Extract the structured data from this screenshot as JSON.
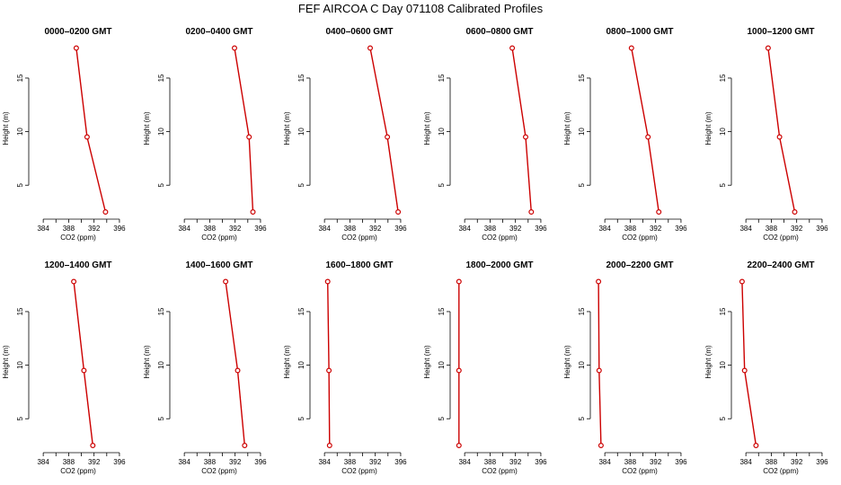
{
  "title": "FEF AIRCOA C  Day 071108  Calibrated Profiles",
  "colors": {
    "series": "#cc0000",
    "axes": "#000000",
    "background": "#ffffff"
  },
  "chart_data": [
    {
      "type": "line",
      "title": "0000–0200 GMT",
      "xlabel": "CO2 (ppm)",
      "ylabel": "Height (m)",
      "xlim": [
        382,
        397
      ],
      "ylim": [
        2,
        18.6
      ],
      "xticks": [
        384,
        388,
        392,
        396
      ],
      "yticks": [
        5,
        10,
        15
      ],
      "points": [
        {
          "x": 389.2,
          "y": 17.8
        },
        {
          "x": 390.9,
          "y": 9.5
        },
        {
          "x": 393.8,
          "y": 2.5
        }
      ]
    },
    {
      "type": "line",
      "title": "0200–0400 GMT",
      "xlabel": "CO2 (ppm)",
      "ylabel": "Height (m)",
      "xlim": [
        382,
        397
      ],
      "ylim": [
        2,
        18.6
      ],
      "xticks": [
        384,
        388,
        392,
        396
      ],
      "yticks": [
        5,
        10,
        15
      ],
      "points": [
        {
          "x": 391.9,
          "y": 17.8
        },
        {
          "x": 394.2,
          "y": 9.5
        },
        {
          "x": 394.8,
          "y": 2.5
        }
      ]
    },
    {
      "type": "line",
      "title": "0400–0600 GMT",
      "xlabel": "CO2 (ppm)",
      "ylabel": "Height (m)",
      "xlim": [
        382,
        397
      ],
      "ylim": [
        2,
        18.6
      ],
      "xticks": [
        384,
        388,
        392,
        396
      ],
      "yticks": [
        5,
        10,
        15
      ],
      "points": [
        {
          "x": 391.2,
          "y": 17.8
        },
        {
          "x": 393.9,
          "y": 9.5
        },
        {
          "x": 395.6,
          "y": 2.5
        }
      ]
    },
    {
      "type": "line",
      "title": "0600–0800 GMT",
      "xlabel": "CO2 (ppm)",
      "ylabel": "Height (m)",
      "xlim": [
        382,
        397
      ],
      "ylim": [
        2,
        18.6
      ],
      "xticks": [
        384,
        388,
        392,
        396
      ],
      "yticks": [
        5,
        10,
        15
      ],
      "points": [
        {
          "x": 391.5,
          "y": 17.8
        },
        {
          "x": 393.6,
          "y": 9.5
        },
        {
          "x": 394.5,
          "y": 2.5
        }
      ]
    },
    {
      "type": "line",
      "title": "0800–1000 GMT",
      "xlabel": "CO2 (ppm)",
      "ylabel": "Height (m)",
      "xlim": [
        382,
        397
      ],
      "ylim": [
        2,
        18.6
      ],
      "xticks": [
        384,
        388,
        392,
        396
      ],
      "yticks": [
        5,
        10,
        15
      ],
      "points": [
        {
          "x": 388.2,
          "y": 17.8
        },
        {
          "x": 390.8,
          "y": 9.5
        },
        {
          "x": 392.5,
          "y": 2.5
        }
      ]
    },
    {
      "type": "line",
      "title": "1000–1200 GMT",
      "xlabel": "CO2 (ppm)",
      "ylabel": "Height (m)",
      "xlim": [
        382,
        397
      ],
      "ylim": [
        2,
        18.6
      ],
      "xticks": [
        384,
        388,
        392,
        396
      ],
      "yticks": [
        5,
        10,
        15
      ],
      "points": [
        {
          "x": 387.5,
          "y": 17.8
        },
        {
          "x": 389.3,
          "y": 9.5
        },
        {
          "x": 391.7,
          "y": 2.5
        }
      ]
    },
    {
      "type": "line",
      "title": "1200–1400 GMT",
      "xlabel": "CO2 (ppm)",
      "ylabel": "Height (m)",
      "xlim": [
        382,
        397
      ],
      "ylim": [
        2,
        18.6
      ],
      "xticks": [
        384,
        388,
        392,
        396
      ],
      "yticks": [
        5,
        10,
        15
      ],
      "points": [
        {
          "x": 388.8,
          "y": 17.8
        },
        {
          "x": 390.4,
          "y": 9.5
        },
        {
          "x": 391.8,
          "y": 2.5
        }
      ]
    },
    {
      "type": "line",
      "title": "1400–1600 GMT",
      "xlabel": "CO2 (ppm)",
      "ylabel": "Height (m)",
      "xlim": [
        382,
        397
      ],
      "ylim": [
        2,
        18.6
      ],
      "xticks": [
        384,
        388,
        392,
        396
      ],
      "yticks": [
        5,
        10,
        15
      ],
      "points": [
        {
          "x": 390.5,
          "y": 17.8
        },
        {
          "x": 392.4,
          "y": 9.5
        },
        {
          "x": 393.5,
          "y": 2.5
        }
      ]
    },
    {
      "type": "line",
      "title": "1600–1800 GMT",
      "xlabel": "CO2 (ppm)",
      "ylabel": "Height (m)",
      "xlim": [
        382,
        397
      ],
      "ylim": [
        2,
        18.6
      ],
      "xticks": [
        384,
        388,
        392,
        396
      ],
      "yticks": [
        5,
        10,
        15
      ],
      "points": [
        {
          "x": 384.5,
          "y": 17.8
        },
        {
          "x": 384.7,
          "y": 9.5
        },
        {
          "x": 384.8,
          "y": 2.5
        }
      ]
    },
    {
      "type": "line",
      "title": "1800–2000 GMT",
      "xlabel": "CO2 (ppm)",
      "ylabel": "Height (m)",
      "xlim": [
        382,
        397
      ],
      "ylim": [
        2,
        18.6
      ],
      "xticks": [
        384,
        388,
        392,
        396
      ],
      "yticks": [
        5,
        10,
        15
      ],
      "points": [
        {
          "x": 383.1,
          "y": 17.8
        },
        {
          "x": 383.1,
          "y": 9.5
        },
        {
          "x": 383.1,
          "y": 2.5
        }
      ]
    },
    {
      "type": "line",
      "title": "2000–2200 GMT",
      "xlabel": "CO2 (ppm)",
      "ylabel": "Height (m)",
      "xlim": [
        382,
        397
      ],
      "ylim": [
        2,
        18.6
      ],
      "xticks": [
        384,
        388,
        392,
        396
      ],
      "yticks": [
        5,
        10,
        15
      ],
      "points": [
        {
          "x": 383.0,
          "y": 17.8
        },
        {
          "x": 383.1,
          "y": 9.5
        },
        {
          "x": 383.4,
          "y": 2.5
        }
      ]
    },
    {
      "type": "line",
      "title": "2200–2400 GMT",
      "xlabel": "CO2 (ppm)",
      "ylabel": "Height (m)",
      "xlim": [
        382,
        397
      ],
      "ylim": [
        2,
        18.6
      ],
      "xticks": [
        384,
        388,
        392,
        396
      ],
      "yticks": [
        5,
        10,
        15
      ],
      "points": [
        {
          "x": 383.4,
          "y": 17.8
        },
        {
          "x": 383.8,
          "y": 9.5
        },
        {
          "x": 385.6,
          "y": 2.5
        }
      ]
    }
  ]
}
